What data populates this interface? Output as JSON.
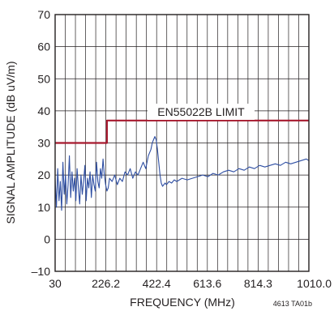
{
  "chart_data": {
    "type": "line",
    "xlabel": "FREQUENCY (MHz)",
    "ylabel": "SIGNAL AMPLITUDE (dB uV/m)",
    "xlim": [
      30,
      1010
    ],
    "ylim": [
      -10,
      70
    ],
    "x_ticks": [
      30,
      226.2,
      422.4,
      613.6,
      814.3,
      1010.0
    ],
    "x_tick_labels": [
      "30",
      "226.2",
      "422.4",
      "613.6",
      "814.3",
      "1010.0"
    ],
    "y_ticks": [
      -10,
      0,
      10,
      20,
      30,
      40,
      50,
      60,
      70
    ],
    "y_tick_labels": [
      "–10",
      "0",
      "10",
      "20",
      "30",
      "40",
      "50",
      "60",
      "70"
    ],
    "grid": true,
    "note": "4613 TA01b",
    "series": [
      {
        "name": "EN55022B LIMIT",
        "color": "#a6192e",
        "step": true,
        "x": [
          30,
          230,
          230,
          1010
        ],
        "y": [
          30,
          30,
          37,
          37
        ]
      },
      {
        "color": "#2f4fa3",
        "x": [
          30,
          35,
          40,
          45,
          50,
          55,
          60,
          65,
          70,
          75,
          80,
          85,
          90,
          95,
          100,
          105,
          110,
          115,
          120,
          125,
          130,
          135,
          140,
          145,
          150,
          155,
          160,
          165,
          170,
          175,
          180,
          185,
          190,
          195,
          200,
          205,
          210,
          215,
          220,
          225,
          230,
          235,
          240,
          250,
          260,
          270,
          280,
          290,
          300,
          310,
          320,
          330,
          340,
          350,
          360,
          370,
          380,
          390,
          400,
          405,
          410,
          415,
          420,
          425,
          430,
          435,
          440,
          445,
          450,
          455,
          460,
          470,
          480,
          490,
          500,
          520,
          540,
          560,
          580,
          600,
          620,
          640,
          660,
          680,
          700,
          720,
          740,
          760,
          780,
          800,
          820,
          840,
          860,
          880,
          900,
          920,
          940,
          960,
          980,
          1000,
          1010
        ],
        "y": [
          19,
          10,
          22,
          12,
          18,
          9,
          24,
          14,
          20,
          11,
          17,
          26,
          13,
          21,
          15,
          19,
          12,
          22,
          16,
          11,
          20,
          14,
          18,
          23,
          12,
          19,
          16,
          21,
          13,
          20,
          17,
          15,
          24,
          18,
          16,
          22,
          19,
          25,
          20,
          17,
          15,
          16,
          19,
          18,
          20,
          17,
          19,
          18,
          21,
          20,
          22,
          19,
          21,
          20,
          22,
          24,
          22,
          26,
          28,
          30,
          31,
          32,
          31,
          28,
          24,
          20,
          17.5,
          16.5,
          17,
          17.5,
          17,
          18,
          17.5,
          18.5,
          18,
          19,
          18.5,
          19,
          19.5,
          20,
          19.5,
          20.5,
          20,
          21,
          21.5,
          21,
          22,
          21.5,
          22.5,
          22,
          23,
          22.5,
          23,
          23.5,
          23,
          24,
          23.5,
          24,
          24.5,
          25,
          24.5
        ]
      }
    ]
  }
}
